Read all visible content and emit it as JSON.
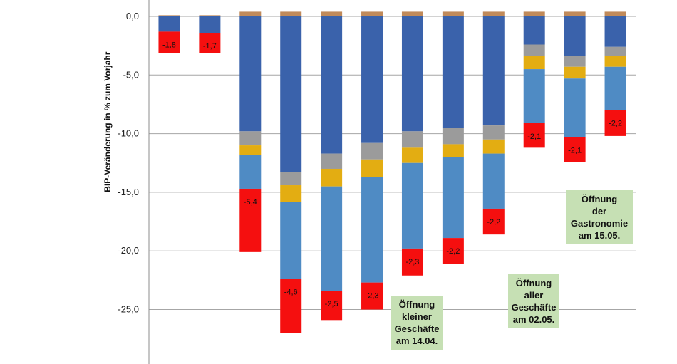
{
  "chart_data": {
    "type": "bar",
    "stacked": true,
    "ylabel": "BIP-Veränderung in % zum Vorjahr",
    "ylim": [
      -29,
      1.5
    ],
    "yticks": [
      0,
      -5,
      -10,
      -15,
      -20,
      -25
    ],
    "ytick_labels": [
      "0,0",
      "-5,0",
      "-10,0",
      "-15,0",
      "-20,0",
      "-25,0"
    ],
    "grid": true,
    "colors": {
      "dark_blue": "#3a62ab",
      "grey": "#9b9b9b",
      "yellow": "#e3ad12",
      "light_blue": "#4f8bc4",
      "red": "#f50f0f",
      "brown": "#c08a5a",
      "box_green": "#c6e0b4"
    },
    "series": [
      {
        "color": "dark_blue",
        "values": [
          -1.3,
          -1.4,
          -9.8,
          -13.3,
          -11.7,
          -10.8,
          -9.8,
          -9.5,
          -9.3,
          -2.4,
          -3.4,
          -2.6
        ]
      },
      {
        "color": "grey",
        "values": [
          0,
          0,
          -1.2,
          -1.1,
          -1.3,
          -1.4,
          -1.4,
          -1.4,
          -1.2,
          -1.0,
          -0.9,
          -0.8
        ]
      },
      {
        "color": "yellow",
        "values": [
          0,
          0,
          -0.8,
          -1.4,
          -1.5,
          -1.5,
          -1.3,
          -1.1,
          -1.2,
          -1.1,
          -1.0,
          -0.9
        ]
      },
      {
        "color": "light_blue",
        "values": [
          0,
          0,
          -2.9,
          -6.6,
          -8.9,
          -9.0,
          -7.3,
          -6.9,
          -4.7,
          -4.6,
          -5.0,
          -3.7
        ]
      },
      {
        "color": "red",
        "values": [
          -1.8,
          -1.7,
          -5.4,
          -4.6,
          -2.5,
          -2.3,
          -2.3,
          -2.2,
          -2.2,
          -2.1,
          -2.1,
          -2.2
        ]
      }
    ],
    "positive_caps": [
      0.1,
      0.1,
      0.4,
      0.4,
      0.4,
      0.4,
      0.4,
      0.4,
      0.4,
      0.4,
      0.4,
      0.4
    ],
    "data_labels": [
      "-1,8",
      "-1,7",
      "-5,4",
      "-4,6",
      "-2,5",
      "-2,3",
      "-2,3",
      "-2,2",
      "-2,2",
      "-2,1",
      "-2,1",
      "-2,2"
    ],
    "annotations": [
      {
        "text": "Öffnung\nkleiner\nGeschäfte\nam 14.04."
      },
      {
        "text": "Öffnung\naller\nGeschäfte\nam 02.05."
      },
      {
        "text": "Öffnung\nder\nGastronomie\nam 15.05."
      }
    ]
  }
}
